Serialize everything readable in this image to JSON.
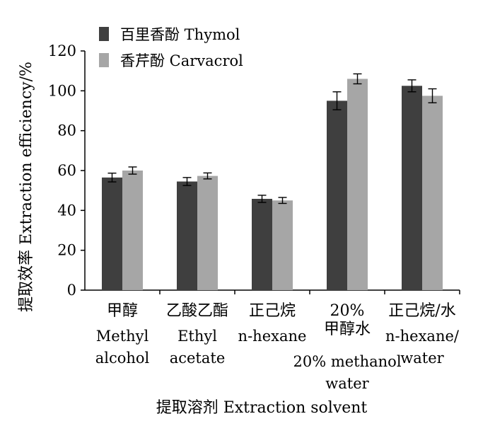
{
  "chart_data": {
    "type": "bar",
    "title": "",
    "ylabel": "提取效率 Extraction efficiency/%",
    "xlabel": "提取溶剂 Extraction solvent",
    "ylim": [
      0,
      120
    ],
    "yticks": [
      0,
      20,
      40,
      60,
      80,
      100,
      120
    ],
    "grid": false,
    "legend_position": "top-left",
    "error_bars": true,
    "categories": [
      {
        "zh": "甲醇",
        "en": [
          "Methyl",
          "alcohol"
        ]
      },
      {
        "zh": "乙酸乙酯",
        "en": [
          "Ethyl",
          "acetate"
        ]
      },
      {
        "zh": "正己烷",
        "en": [
          "n-hexane"
        ]
      },
      {
        "zh": "20% 甲醇水",
        "zh_lines": [
          "20%",
          "甲醇水"
        ],
        "en": [
          "20% methanol",
          "water"
        ]
      },
      {
        "zh": "正己烷/水",
        "en": [
          "n-hexane/",
          "water"
        ]
      }
    ],
    "series": [
      {
        "name": "百里香酚  Thymol",
        "color": "#3f3f3f",
        "values": [
          56.5,
          54.5,
          45.8,
          95,
          102.5
        ],
        "errors": [
          2.2,
          2.0,
          1.8,
          4.5,
          3.0
        ]
      },
      {
        "name": "香芹酚  Carvacrol",
        "color": "#a6a6a6",
        "values": [
          60,
          57.3,
          45,
          106,
          97.5
        ],
        "errors": [
          1.8,
          1.5,
          1.5,
          2.5,
          3.5
        ]
      }
    ]
  }
}
